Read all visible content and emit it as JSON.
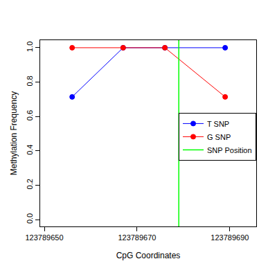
{
  "chart_data": {
    "type": "line",
    "x_label": "CpG Coordinates",
    "y_label": "Methylation Frequency",
    "x": [
      123789656,
      123789667,
      123789676,
      123789689
    ],
    "series": [
      {
        "name": "T SNP",
        "color": "#0000ff",
        "marker": "open-circle",
        "values": [
          0.714,
          1.0,
          1.0,
          1.0
        ]
      },
      {
        "name": "G SNP",
        "color": "#ff0000",
        "marker": "open-circle",
        "values": [
          1.0,
          1.0,
          1.0,
          0.714
        ]
      }
    ],
    "vlines": [
      {
        "name": "SNP Position",
        "color": "#00ff00",
        "x": 123789679
      }
    ],
    "xlim": [
      123789649.1,
      123789695.7
    ],
    "xticks": [
      123789650,
      123789670,
      123789690
    ],
    "ylim": [
      -0.04,
      1.044
    ],
    "yticks": [
      {
        "value": 0,
        "label": "0.0"
      },
      {
        "value": 0.2,
        "label": "0.2"
      },
      {
        "value": 0.4,
        "label": "0.4"
      },
      {
        "value": 0.6,
        "label": "0.6"
      },
      {
        "value": 0.8,
        "label": "0.8"
      },
      {
        "value": 1.0,
        "label": "1.0"
      }
    ],
    "grid": false,
    "legend": "right"
  }
}
